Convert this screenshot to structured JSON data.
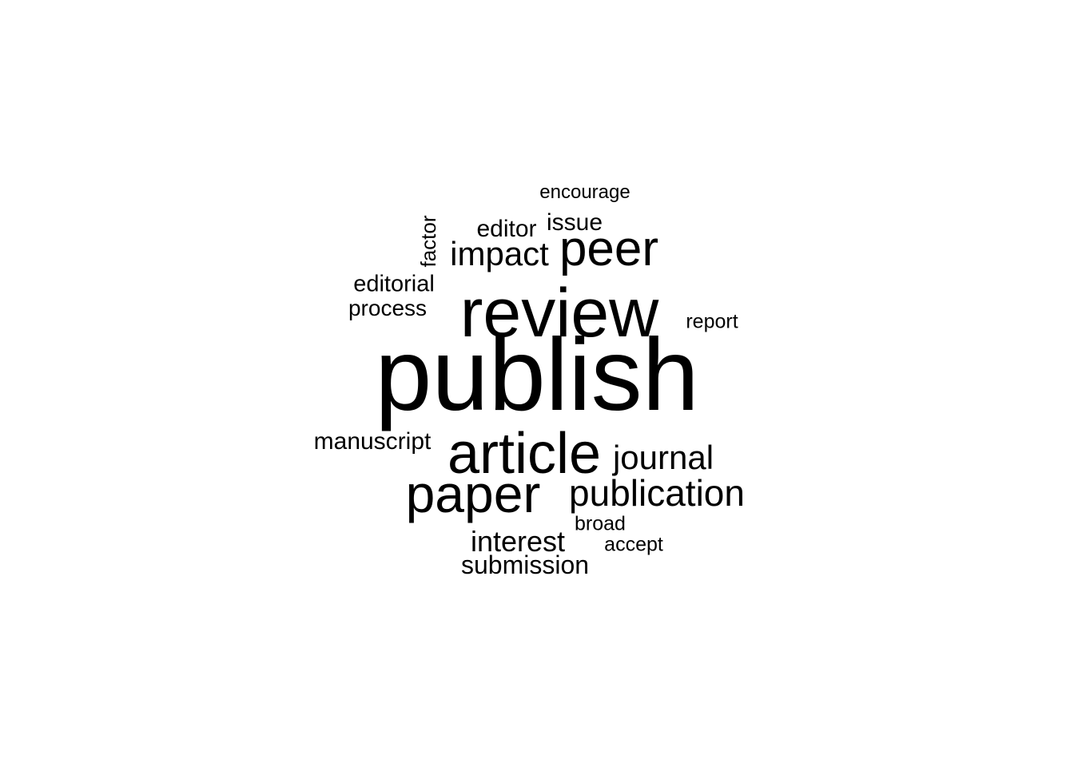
{
  "word_cloud": {
    "words": {
      "publish": "publish",
      "review": "review",
      "article": "article",
      "paper": "paper",
      "peer": "peer",
      "publication": "publication",
      "journal": "journal",
      "impact": "impact",
      "interest": "interest",
      "submission": "submission",
      "editor": "editor",
      "issue": "issue",
      "manuscript": "manuscript",
      "editorial": "editorial",
      "process": "process",
      "encourage": "encourage",
      "report": "report",
      "broad": "broad",
      "accept": "accept",
      "factor": "factor"
    },
    "text_color": "#000000",
    "background_color": "#ffffff"
  }
}
